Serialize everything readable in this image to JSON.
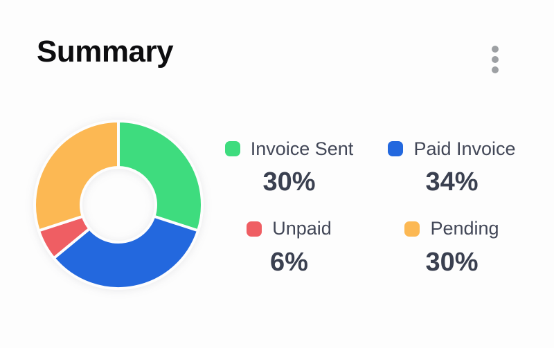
{
  "header": {
    "title": "Summary",
    "more_options_icon": "kebab-menu"
  },
  "colors": {
    "background": "#fdfdfd",
    "title_text": "#0d0d0f",
    "legend_label_text": "#424757",
    "legend_value_text": "#3a4050",
    "menu_dots": "#9da0a3",
    "segment_gap": "#fdfdfd",
    "green": "#3edc7e",
    "blue": "#2368de",
    "red": "#ef5e63",
    "orange": "#fcb853"
  },
  "chart_data": {
    "type": "pie",
    "subtype": "donut",
    "title": "Summary",
    "categories": [
      "Invoice Sent",
      "Paid Invoice",
      "Unpaid",
      "Pending"
    ],
    "values": [
      30,
      34,
      6,
      30
    ],
    "unit": "%",
    "colors": [
      "#3edc7e",
      "#2368de",
      "#ef5e63",
      "#fcb853"
    ],
    "start_angle_deg": 0,
    "direction": "clockwise",
    "inner_radius_ratio": 0.45,
    "legend_position": "right",
    "data_labels": [
      "30%",
      "34%",
      "6%",
      "30%"
    ]
  },
  "legend": {
    "items": [
      {
        "label": "Invoice Sent",
        "value": "30%",
        "color": "#3edc7e"
      },
      {
        "label": "Paid Invoice",
        "value": "34%",
        "color": "#2368de"
      },
      {
        "label": "Unpaid",
        "value": "6%",
        "color": "#ef5e63"
      },
      {
        "label": "Pending",
        "value": "30%",
        "color": "#fcb853"
      }
    ]
  }
}
